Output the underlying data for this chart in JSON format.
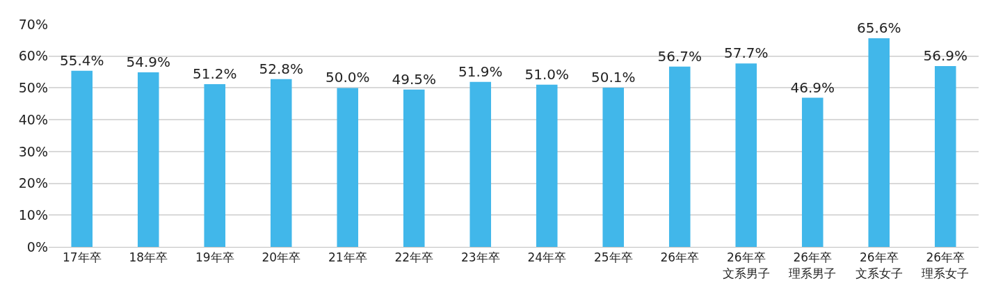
{
  "chart_data": {
    "type": "bar",
    "categories": [
      "17年卒",
      "18年卒",
      "19年卒",
      "20年卒",
      "21年卒",
      "22年卒",
      "23年卒",
      "24年卒",
      "25年卒",
      "26年卒",
      "26年卒文系男子",
      "26年卒理系男子",
      "26年卒文系女子",
      "26年卒理系女子"
    ],
    "values": [
      55.4,
      54.9,
      51.2,
      52.8,
      50.0,
      49.5,
      51.9,
      51.0,
      50.1,
      56.7,
      57.7,
      46.9,
      65.6,
      56.9
    ],
    "value_labels": [
      "55.4%",
      "54.9%",
      "51.2%",
      "52.8%",
      "50.0%",
      "49.5%",
      "51.9%",
      "51.0%",
      "50.1%",
      "56.7%",
      "57.7%",
      "46.9%",
      "65.6%",
      "56.9%"
    ],
    "color": "#41b7ea",
    "ylim": [
      0,
      70
    ],
    "yticks": [
      {
        "value": 0,
        "label": "0%"
      },
      {
        "value": 10,
        "label": "10%"
      },
      {
        "value": 20,
        "label": "20%"
      },
      {
        "value": 30,
        "label": "30%"
      },
      {
        "value": 40,
        "label": "40%"
      },
      {
        "value": 50,
        "label": "50%"
      },
      {
        "value": 60,
        "label": "60%"
      },
      {
        "value": 70,
        "label": "70%"
      }
    ],
    "grid": "y"
  }
}
